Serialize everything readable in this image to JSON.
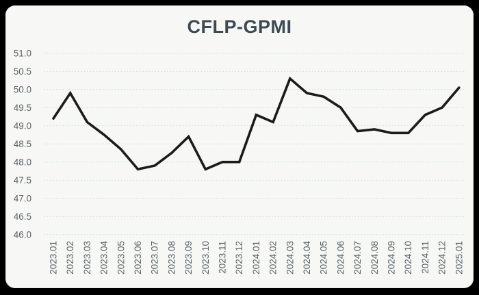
{
  "header": {
    "title": "CFLP-GPMI"
  },
  "colors": {
    "page_background": "#000000",
    "card_background": "#f7f8f6",
    "title_color": "#3d4a51",
    "gridline_color": "#ccdedd",
    "tick_label_color": "#5a6165",
    "line_color": "#1b1b1b"
  },
  "chart_data": {
    "type": "line",
    "title": "CFLP-GPMI",
    "x": [
      "2023.01",
      "2023.02",
      "2023.03",
      "2023.04",
      "2023.05",
      "2023.06",
      "2023.07",
      "2023.08",
      "2023.09",
      "2023.10",
      "2023.11",
      "2023.12",
      "2024.01",
      "2024.02",
      "2024.03",
      "2024.04",
      "2024.05",
      "2024.06",
      "2024.07",
      "2024.08",
      "2024.09",
      "2024.10",
      "2024.11",
      "2024.12",
      "2025.01"
    ],
    "series": [
      {
        "name": "CFLP-GPMI",
        "values": [
          49.2,
          49.9,
          49.1,
          48.75,
          48.35,
          47.8,
          47.9,
          48.25,
          48.7,
          47.8,
          48.0,
          48.0,
          49.3,
          49.1,
          50.3,
          49.9,
          49.8,
          49.5,
          48.85,
          48.9,
          48.8,
          48.8,
          49.3,
          49.5,
          50.05
        ]
      }
    ],
    "ylim": [
      46.0,
      51.0
    ],
    "ytick_labels": [
      "51.0",
      "50.5",
      "50.0",
      "49.5",
      "49.0",
      "48.5",
      "48.0",
      "47.5",
      "47.0",
      "46.5",
      "46.0"
    ],
    "xlabel": "",
    "ylabel": "",
    "legend": "none",
    "grid": "horizontal-dotted",
    "x_label_rotation_degrees": 90
  }
}
